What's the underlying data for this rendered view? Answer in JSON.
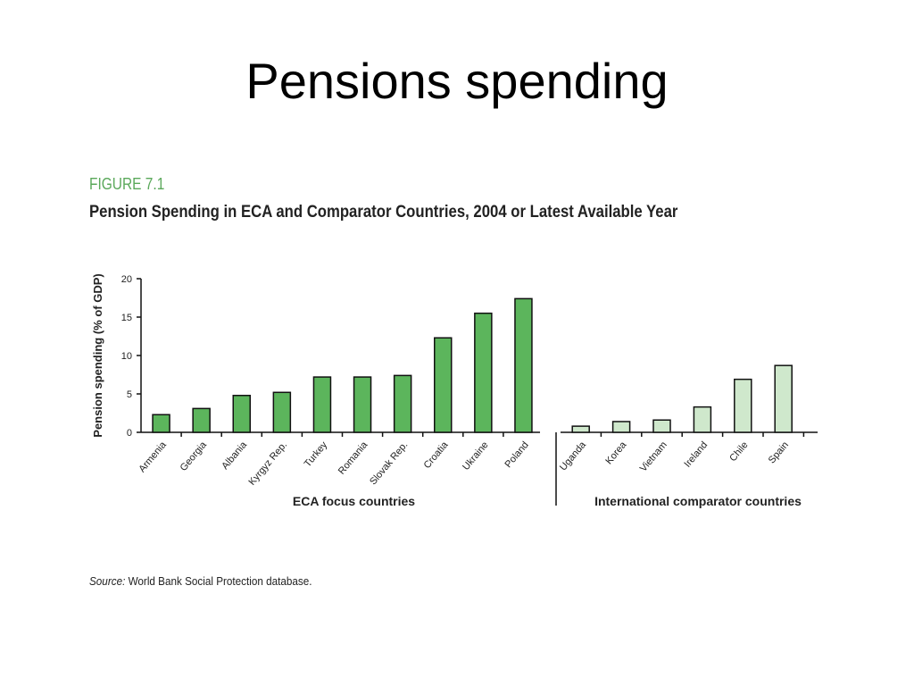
{
  "slide": {
    "title": "Pensions spending"
  },
  "figure": {
    "label": "FIGURE 7.1",
    "title": "Pension Spending in ECA and Comparator Countries, 2004 or Latest Available Year",
    "source_label": "Source:",
    "source_text": "World Bank Social Protection database."
  },
  "chart_data": {
    "type": "bar",
    "ylabel": "Pension spending (% of GDP)",
    "ylim": [
      0,
      20
    ],
    "yticks": [
      0,
      5,
      10,
      15,
      20
    ],
    "grid": false,
    "groups": [
      {
        "name": "ECA focus countries",
        "color": "#5cb55c",
        "categories": [
          "Armenia",
          "Georgia",
          "Albania",
          "Kyrgyz Rep.",
          "Turkey",
          "Romania",
          "Slovak Rep.",
          "Croatia",
          "Ukraine",
          "Poland"
        ],
        "values": [
          2.3,
          3.1,
          4.8,
          5.2,
          7.2,
          7.2,
          7.4,
          12.3,
          15.5,
          17.4
        ]
      },
      {
        "name": "International comparator countries",
        "color": "#cfe8cc",
        "categories": [
          "Uganda",
          "Korea",
          "Vietnam",
          "Ireland",
          "Chile",
          "Spain"
        ],
        "values": [
          0.8,
          1.4,
          1.6,
          3.3,
          6.9,
          8.7
        ]
      }
    ]
  }
}
